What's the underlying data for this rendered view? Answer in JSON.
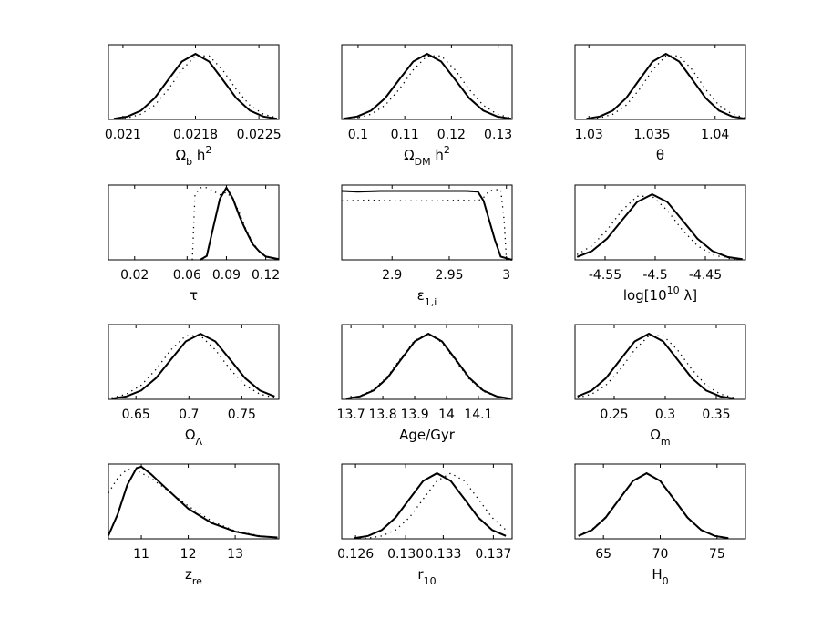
{
  "chart_data": [
    {
      "type": "line",
      "xlabel": [
        {
          "text": "Ω"
        },
        {
          "text": "b",
          "script": "sub"
        },
        {
          "text": " h"
        },
        {
          "text": "2",
          "script": "sup"
        }
      ],
      "xlim": [
        0.02084,
        0.02272
      ],
      "xticks": [
        0.021,
        0.0218,
        0.0225
      ],
      "ylim": [
        0,
        1.14
      ],
      "series": [
        {
          "style": "solid",
          "color": "#000000",
          "x": [
            0.0209,
            0.02105,
            0.0212,
            0.02135,
            0.0215,
            0.02165,
            0.0218,
            0.02195,
            0.0221,
            0.02225,
            0.0224,
            0.02255,
            0.0227
          ],
          "values": [
            0.0111,
            0.0439,
            0.1353,
            0.3247,
            0.6065,
            0.8825,
            1,
            0.8825,
            0.6065,
            0.3247,
            0.1353,
            0.0439,
            0.0111
          ]
        },
        {
          "style": "dotted",
          "color": "#000000",
          "x": [
            0.0209,
            0.02105,
            0.0212,
            0.02135,
            0.0215,
            0.02165,
            0.0218,
            0.02195,
            0.0221,
            0.02225,
            0.0224,
            0.02255,
            0.0227
          ],
          "values": [
            0.0051,
            0.0228,
            0.0796,
            0.2163,
            0.4578,
            0.7548,
            0.9692,
            0.9692,
            0.7548,
            0.4578,
            0.2163,
            0.0796,
            0.0228
          ]
        }
      ]
    },
    {
      "type": "line",
      "xlabel": [
        {
          "text": "Ω"
        },
        {
          "text": "DM",
          "script": "sub"
        },
        {
          "text": " h"
        },
        {
          "text": "2",
          "script": "sup"
        }
      ],
      "xlim": [
        0.0965,
        0.133
      ],
      "xticks": [
        0.1,
        0.11,
        0.12,
        0.13
      ],
      "ylim": [
        0,
        1.14
      ],
      "series": [
        {
          "style": "solid",
          "color": "#000000",
          "x": [
            0.0968,
            0.0998,
            0.1028,
            0.1058,
            0.1088,
            0.1118,
            0.1148,
            0.1178,
            0.1208,
            0.1238,
            0.1268,
            0.1298,
            0.1328
          ],
          "values": [
            0.0111,
            0.0439,
            0.1353,
            0.3247,
            0.6065,
            0.8825,
            1,
            0.8825,
            0.6065,
            0.3247,
            0.1353,
            0.0439,
            0.0111
          ]
        },
        {
          "style": "dotted",
          "color": "#000000",
          "x": [
            0.0968,
            0.0998,
            0.1028,
            0.1058,
            0.1088,
            0.1118,
            0.1148,
            0.1178,
            0.1208,
            0.1238,
            0.1268,
            0.1298,
            0.1328
          ],
          "values": [
            0.0051,
            0.0228,
            0.0796,
            0.2163,
            0.4578,
            0.7548,
            0.9692,
            0.9692,
            0.7548,
            0.4578,
            0.2163,
            0.0796,
            0.0228
          ]
        }
      ]
    },
    {
      "type": "line",
      "xlabel": [
        {
          "text": "θ"
        }
      ],
      "xlim": [
        1.0289,
        1.0424
      ],
      "xticks": [
        1.03,
        1.035,
        1.04
      ],
      "ylim": [
        0,
        1.14
      ],
      "series": [
        {
          "style": "solid",
          "color": "#000000",
          "x": [
            1.0298,
            1.03085,
            1.0319,
            1.03295,
            1.034,
            1.03505,
            1.0361,
            1.03715,
            1.0382,
            1.03925,
            1.0403,
            1.04135,
            1.0424
          ],
          "values": [
            0.0111,
            0.0439,
            0.1353,
            0.3247,
            0.6065,
            0.8825,
            1,
            0.8825,
            0.6065,
            0.3247,
            0.1353,
            0.0439,
            0.0111
          ]
        },
        {
          "style": "dotted",
          "color": "#000000",
          "x": [
            1.0298,
            1.03085,
            1.0319,
            1.03295,
            1.034,
            1.03505,
            1.0361,
            1.03715,
            1.0382,
            1.03925,
            1.0403,
            1.04135,
            1.0424
          ],
          "values": [
            0.0051,
            0.0228,
            0.0796,
            0.2163,
            0.4578,
            0.7548,
            0.9692,
            0.9692,
            0.7548,
            0.4578,
            0.2163,
            0.0796,
            0.0228
          ]
        }
      ]
    },
    {
      "type": "line",
      "xlabel": [
        {
          "text": "τ"
        }
      ],
      "xlim": [
        0,
        0.13
      ],
      "xticks": [
        0.02,
        0.06,
        0.09,
        0.12
      ],
      "ylim": [
        0,
        1.14
      ],
      "series": [
        {
          "style": "solid",
          "color": "#000000",
          "x": [
            0.07,
            0.075,
            0.08,
            0.085,
            0.09,
            0.095,
            0.1,
            0.105,
            0.11,
            0.115,
            0.12,
            0.13
          ],
          "values": [
            0,
            0.06,
            0.5,
            0.93,
            1.1,
            0.93,
            0.66,
            0.44,
            0.24,
            0.13,
            0.05,
            0.01
          ]
        },
        {
          "style": "dotted",
          "color": "#000000",
          "x": [
            0.064,
            0.066,
            0.07,
            0.075,
            0.08,
            0.085,
            0.09,
            0.095,
            0.1,
            0.105,
            0.11,
            0.115,
            0.12,
            0.13
          ],
          "values": [
            0,
            0.99,
            1.1,
            1.1,
            1.05,
            0.99,
            1.03,
            0.93,
            0.71,
            0.46,
            0.27,
            0.13,
            0.05,
            0.01
          ]
        }
      ]
    },
    {
      "type": "line",
      "xlabel": [
        {
          "text": "ε"
        },
        {
          "text": "1,i",
          "script": "sub"
        }
      ],
      "xlim": [
        2.856,
        3.005
      ],
      "xticks": [
        2.9,
        2.95,
        3
      ],
      "ylim": [
        0,
        1.14
      ],
      "series": [
        {
          "style": "solid",
          "color": "#000000",
          "x": [
            2.856,
            2.87,
            2.89,
            2.91,
            2.93,
            2.95,
            2.965,
            2.975,
            2.98,
            2.985,
            2.99,
            2.995,
            3.005
          ],
          "values": [
            1.05,
            1.04,
            1.05,
            1.05,
            1.05,
            1.05,
            1.05,
            1.04,
            0.9,
            0.6,
            0.3,
            0.05,
            0
          ]
        },
        {
          "style": "dotted",
          "color": "#000000",
          "x": [
            2.856,
            2.88,
            2.91,
            2.94,
            2.96,
            2.975,
            2.98,
            2.985,
            2.99,
            2.995,
            2.998,
            3.0
          ],
          "values": [
            0.9,
            0.91,
            0.9,
            0.9,
            0.91,
            0.9,
            0.95,
            1.05,
            1.07,
            1.07,
            0.6,
            0
          ]
        }
      ]
    },
    {
      "type": "line",
      "xlabel": [
        {
          "text": "log[10"
        },
        {
          "text": "10",
          "script": "sup"
        },
        {
          "text": " λ]"
        }
      ],
      "xlim": [
        -4.58,
        -4.41
      ],
      "xticks": [
        -4.55,
        -4.5,
        -4.45
      ],
      "ylim": [
        0,
        1.14
      ],
      "series": [
        {
          "style": "solid",
          "color": "#000000",
          "x": [
            -4.578,
            -4.563,
            -4.548,
            -4.533,
            -4.518,
            -4.503,
            -4.488,
            -4.473,
            -4.458,
            -4.443,
            -4.428,
            -4.413
          ],
          "values": [
            0.0439,
            0.1353,
            0.3247,
            0.6065,
            0.8825,
            1,
            0.8825,
            0.6065,
            0.3247,
            0.1353,
            0.0439,
            0.0111
          ]
        },
        {
          "style": "dotted",
          "color": "#000000",
          "x": [
            -4.578,
            -4.563,
            -4.548,
            -4.533,
            -4.518,
            -4.503,
            -4.488,
            -4.473,
            -4.458,
            -4.443,
            -4.428,
            -4.413
          ],
          "values": [
            0.0796,
            0.2163,
            0.4578,
            0.7548,
            0.9692,
            0.9692,
            0.7548,
            0.4578,
            0.2163,
            0.0796,
            0.0228,
            0.0051
          ]
        }
      ]
    },
    {
      "type": "line",
      "xlabel": [
        {
          "text": "Ω"
        },
        {
          "text": "Λ",
          "script": "sub"
        }
      ],
      "xlim": [
        0.624,
        0.785
      ],
      "xticks": [
        0.65,
        0.7,
        0.75
      ],
      "ylim": [
        0,
        1.14
      ],
      "series": [
        {
          "style": "solid",
          "color": "#000000",
          "x": [
            0.627,
            0.641,
            0.655,
            0.669,
            0.683,
            0.697,
            0.711,
            0.725,
            0.739,
            0.753,
            0.767,
            0.781
          ],
          "values": [
            0.0111,
            0.0439,
            0.1353,
            0.3247,
            0.6065,
            0.8825,
            1,
            0.8825,
            0.6065,
            0.3247,
            0.1353,
            0.0439
          ]
        },
        {
          "style": "dotted",
          "color": "#000000",
          "x": [
            0.627,
            0.641,
            0.655,
            0.669,
            0.683,
            0.697,
            0.711,
            0.725,
            0.739,
            0.753,
            0.767,
            0.781
          ],
          "values": [
            0.0228,
            0.0796,
            0.2163,
            0.4578,
            0.7548,
            0.9692,
            0.9692,
            0.7548,
            0.4578,
            0.2163,
            0.0796,
            0.0228
          ]
        }
      ]
    },
    {
      "type": "line",
      "xlabel": [
        {
          "text": "Age/Gyr"
        }
      ],
      "xlim": [
        13.671,
        14.206
      ],
      "xticks": [
        13.7,
        13.8,
        13.9,
        14,
        14.1
      ],
      "ylim": [
        0,
        1.14
      ],
      "series": [
        {
          "style": "solid",
          "color": "#000000",
          "x": [
            13.685,
            13.728,
            13.771,
            13.814,
            13.857,
            13.9,
            13.943,
            13.986,
            14.029,
            14.072,
            14.115,
            14.158,
            14.201
          ],
          "values": [
            0.0111,
            0.0439,
            0.1353,
            0.3247,
            0.6065,
            0.8825,
            1,
            0.8825,
            0.6065,
            0.3247,
            0.1353,
            0.0439,
            0.0111
          ]
        },
        {
          "style": "dotted",
          "color": "#000000",
          "x": [
            13.685,
            13.728,
            13.771,
            13.814,
            13.857,
            13.9,
            13.943,
            13.986,
            14.029,
            14.072,
            14.115,
            14.158,
            14.201
          ],
          "values": [
            0.0139,
            0.0507,
            0.149,
            0.346,
            0.63,
            0.898,
            1,
            0.866,
            0.583,
            0.304,
            0.123,
            0.039,
            0.0098
          ]
        }
      ]
    },
    {
      "type": "line",
      "xlabel": [
        {
          "text": "Ω"
        },
        {
          "text": "m",
          "script": "sub"
        }
      ],
      "xlim": [
        0.2116,
        0.3786
      ],
      "xticks": [
        0.25,
        0.3,
        0.35
      ],
      "ylim": [
        0,
        1.14
      ],
      "series": [
        {
          "style": "solid",
          "color": "#000000",
          "x": [
            0.214,
            0.228,
            0.242,
            0.256,
            0.27,
            0.284,
            0.298,
            0.312,
            0.326,
            0.34,
            0.354,
            0.368
          ],
          "values": [
            0.0439,
            0.1353,
            0.3247,
            0.6065,
            0.8825,
            1,
            0.8825,
            0.6065,
            0.3247,
            0.1353,
            0.0439,
            0.0111
          ]
        },
        {
          "style": "dotted",
          "color": "#000000",
          "x": [
            0.214,
            0.228,
            0.242,
            0.256,
            0.27,
            0.284,
            0.298,
            0.312,
            0.326,
            0.34,
            0.354,
            0.368
          ],
          "values": [
            0.0228,
            0.0796,
            0.2163,
            0.4578,
            0.7548,
            0.9692,
            0.9692,
            0.7548,
            0.4578,
            0.2163,
            0.0796,
            0.0228
          ]
        }
      ]
    },
    {
      "type": "line",
      "xlabel": [
        {
          "text": "z"
        },
        {
          "text": "re",
          "script": "sub"
        }
      ],
      "xlim": [
        10.3,
        13.93
      ],
      "xticks": [
        11,
        12,
        13
      ],
      "ylim": [
        0,
        1.14
      ],
      "series": [
        {
          "style": "solid",
          "color": "#000000",
          "x": [
            10.3,
            10.5,
            10.7,
            10.9,
            11,
            11.2,
            11.5,
            12,
            12.5,
            13,
            13.5,
            13.9
          ],
          "values": [
            0.05,
            0.38,
            0.82,
            1.08,
            1.1,
            0.99,
            0.79,
            0.46,
            0.24,
            0.11,
            0.04,
            0.02
          ]
        },
        {
          "style": "dotted",
          "color": "#000000",
          "x": [
            10.3,
            10.5,
            10.7,
            10.9,
            11.2,
            11.5,
            12,
            12.5,
            13,
            13.5,
            13.9
          ],
          "values": [
            0.7,
            0.93,
            1.06,
            1.04,
            0.93,
            0.77,
            0.5,
            0.27,
            0.12,
            0.05,
            0.02
          ]
        }
      ]
    },
    {
      "type": "line",
      "xlabel": [
        {
          "text": "r"
        },
        {
          "text": "10",
          "script": "sub"
        }
      ],
      "xlim": [
        0.1249,
        0.1385
      ],
      "xticks": [
        0.126,
        {
          "value": 0.13,
          "label": "0.130"
        },
        0.133,
        0.137
      ],
      "ylim": [
        0,
        1.14
      ],
      "series": [
        {
          "style": "solid",
          "color": "#000000",
          "x": [
            0.1259,
            0.127,
            0.1281,
            0.1292,
            0.1303,
            0.1314,
            0.1325,
            0.1336,
            0.1347,
            0.1358,
            0.1369,
            0.138
          ],
          "values": [
            0.0111,
            0.0439,
            0.1353,
            0.3247,
            0.6065,
            0.8825,
            1,
            0.8825,
            0.6065,
            0.3247,
            0.1353,
            0.0439
          ]
        },
        {
          "style": "dotted",
          "color": "#000000",
          "x": [
            0.1259,
            0.127,
            0.1281,
            0.1292,
            0.1303,
            0.1314,
            0.1325,
            0.1336,
            0.1347,
            0.1358,
            0.1369,
            0.138
          ],
          "values": [
            0.0022,
            0.0111,
            0.0439,
            0.1353,
            0.3247,
            0.6065,
            0.8825,
            1,
            0.8825,
            0.6065,
            0.3247,
            0.1353
          ]
        }
      ]
    },
    {
      "type": "line",
      "xlabel": [
        {
          "text": "H"
        },
        {
          "text": "0",
          "script": "sub"
        }
      ],
      "xlim": [
        62.5,
        77.5
      ],
      "xticks": [
        65,
        70,
        75
      ],
      "ylim": [
        0,
        1.14
      ],
      "series": [
        {
          "style": "solid",
          "color": "#000000",
          "x": [
            62.8,
            64,
            65.2,
            66.4,
            67.6,
            68.8,
            70,
            71.2,
            72.4,
            73.6,
            74.8,
            76
          ],
          "values": [
            0.0439,
            0.1353,
            0.3247,
            0.6065,
            0.8825,
            1,
            0.8825,
            0.6065,
            0.3247,
            0.1353,
            0.0439,
            0.0111
          ]
        },
        {
          "style": "dotted",
          "color": "#000000",
          "x": [
            62.8,
            64,
            65.2,
            66.4,
            67.6,
            68.8,
            70,
            71.2,
            72.4,
            73.6,
            74.8,
            76
          ],
          "values": [
            0.05,
            0.145,
            0.335,
            0.615,
            0.885,
            0.995,
            0.875,
            0.595,
            0.315,
            0.13,
            0.042,
            0.0105
          ]
        }
      ]
    }
  ]
}
